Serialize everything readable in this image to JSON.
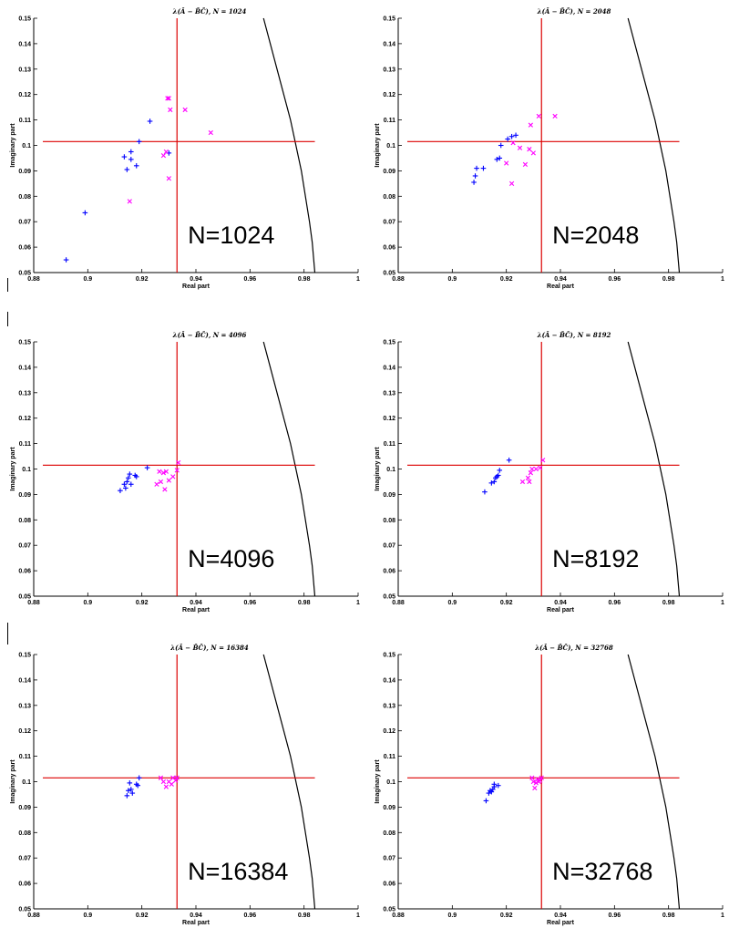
{
  "chart_data": [
    {
      "type": "scatter",
      "title": "λ(Â − B̂Ĉ), N = 1024",
      "xlabel": "Real part",
      "ylabel": "Imaginary part",
      "xlim": [
        0.88,
        1.0
      ],
      "ylim": [
        0.05,
        0.15
      ],
      "xticks": [
        "0.88",
        "0.9",
        "0.92",
        "0.94",
        "0.96",
        "0.98",
        "1"
      ],
      "yticks": [
        "0.05",
        "0.06",
        "0.07",
        "0.08",
        "0.09",
        "0.1",
        "0.11",
        "0.12",
        "0.13",
        "0.14",
        "0.15"
      ],
      "annotation": "N=1024",
      "crosshair": {
        "x": 0.933,
        "y": 0.1015
      },
      "series": [
        {
          "marker": "plus",
          "color": "#0000ff",
          "points": [
            [
              0.892,
              0.055
            ],
            [
              0.899,
              0.0735
            ],
            [
              0.9135,
              0.0955
            ],
            [
              0.9145,
              0.0905
            ],
            [
              0.916,
              0.0945
            ],
            [
              0.916,
              0.0975
            ],
            [
              0.918,
              0.092
            ],
            [
              0.919,
              0.1015
            ],
            [
              0.923,
              0.1095
            ],
            [
              0.93,
              0.097
            ]
          ]
        },
        {
          "marker": "x",
          "color": "#ff00ff",
          "points": [
            [
              0.9155,
              0.078
            ],
            [
              0.928,
              0.096
            ],
            [
              0.929,
              0.0975
            ],
            [
              0.9295,
              0.1185
            ],
            [
              0.93,
              0.1185
            ],
            [
              0.9305,
              0.114
            ],
            [
              0.93,
              0.087
            ],
            [
              0.936,
              0.114
            ],
            [
              0.9455,
              0.105
            ]
          ]
        }
      ],
      "boundary_curve": [
        [
          0.965,
          0.15
        ],
        [
          0.97,
          0.13
        ],
        [
          0.975,
          0.11
        ],
        [
          0.979,
          0.09
        ],
        [
          0.982,
          0.07
        ],
        [
          0.983,
          0.062
        ],
        [
          0.984,
          0.05
        ]
      ]
    },
    {
      "type": "scatter",
      "title": "λ(Â − B̂Ĉ), N = 2048",
      "xlabel": "Real part",
      "ylabel": "Imaginary part",
      "xlim": [
        0.88,
        1.0
      ],
      "ylim": [
        0.05,
        0.15
      ],
      "xticks": [
        "0.88",
        "0.9",
        "0.92",
        "0.94",
        "0.96",
        "0.98",
        "1"
      ],
      "yticks": [
        "0.05",
        "0.06",
        "0.07",
        "0.08",
        "0.09",
        "0.1",
        "0.11",
        "0.12",
        "0.13",
        "0.14",
        "0.15"
      ],
      "annotation": "N=2048",
      "crosshair": {
        "x": 0.933,
        "y": 0.1015
      },
      "series": [
        {
          "marker": "plus",
          "color": "#0000ff",
          "points": [
            [
              0.908,
              0.0855
            ],
            [
              0.9085,
              0.088
            ],
            [
              0.909,
              0.091
            ],
            [
              0.9115,
              0.091
            ],
            [
              0.9165,
              0.0945
            ],
            [
              0.9175,
              0.095
            ],
            [
              0.918,
              0.1
            ],
            [
              0.9205,
              0.1025
            ],
            [
              0.922,
              0.1035
            ],
            [
              0.9235,
              0.104
            ]
          ]
        },
        {
          "marker": "x",
          "color": "#ff00ff",
          "points": [
            [
              0.92,
              0.093
            ],
            [
              0.922,
              0.085
            ],
            [
              0.9225,
              0.101
            ],
            [
              0.925,
              0.099
            ],
            [
              0.927,
              0.0925
            ],
            [
              0.9285,
              0.0985
            ],
            [
              0.93,
              0.097
            ],
            [
              0.929,
              0.108
            ],
            [
              0.932,
              0.1115
            ],
            [
              0.938,
              0.1115
            ]
          ]
        }
      ],
      "boundary_curve": [
        [
          0.965,
          0.15
        ],
        [
          0.97,
          0.13
        ],
        [
          0.975,
          0.11
        ],
        [
          0.979,
          0.09
        ],
        [
          0.982,
          0.07
        ],
        [
          0.983,
          0.062
        ],
        [
          0.984,
          0.05
        ]
      ]
    },
    {
      "type": "scatter",
      "title": "λ(Â − B̂Ĉ), N = 4096",
      "xlabel": "Real part",
      "ylabel": "Imaginary part",
      "xlim": [
        0.88,
        1.0
      ],
      "ylim": [
        0.05,
        0.15
      ],
      "xticks": [
        "0.88",
        "0.9",
        "0.92",
        "0.94",
        "0.96",
        "0.98",
        "1"
      ],
      "yticks": [
        "0.05",
        "0.06",
        "0.07",
        "0.08",
        "0.09",
        "0.1",
        "0.11",
        "0.12",
        "0.13",
        "0.14",
        "0.15"
      ],
      "annotation": "N=4096",
      "crosshair": {
        "x": 0.933,
        "y": 0.1015
      },
      "series": [
        {
          "marker": "plus",
          "color": "#0000ff",
          "points": [
            [
              0.912,
              0.0915
            ],
            [
              0.9135,
              0.094
            ],
            [
              0.914,
              0.0925
            ],
            [
              0.9145,
              0.095
            ],
            [
              0.915,
              0.0965
            ],
            [
              0.9155,
              0.098
            ],
            [
              0.916,
              0.094
            ],
            [
              0.9175,
              0.0975
            ],
            [
              0.918,
              0.097
            ],
            [
              0.922,
              0.1005
            ]
          ]
        },
        {
          "marker": "x",
          "color": "#ff00ff",
          "points": [
            [
              0.9255,
              0.094
            ],
            [
              0.9265,
              0.099
            ],
            [
              0.927,
              0.095
            ],
            [
              0.928,
              0.0985
            ],
            [
              0.9285,
              0.092
            ],
            [
              0.929,
              0.099
            ],
            [
              0.93,
              0.0955
            ],
            [
              0.9315,
              0.097
            ],
            [
              0.933,
              0.0995
            ],
            [
              0.9335,
              0.1025
            ]
          ]
        }
      ],
      "boundary_curve": [
        [
          0.965,
          0.15
        ],
        [
          0.97,
          0.13
        ],
        [
          0.975,
          0.11
        ],
        [
          0.979,
          0.09
        ],
        [
          0.982,
          0.07
        ],
        [
          0.983,
          0.062
        ],
        [
          0.984,
          0.05
        ]
      ]
    },
    {
      "type": "scatter",
      "title": "λ(Â − B̂Ĉ), N = 8192",
      "xlabel": "Real part",
      "ylabel": "Imaginary part",
      "xlim": [
        0.88,
        1.0
      ],
      "ylim": [
        0.05,
        0.15
      ],
      "xticks": [
        "0.88",
        "0.9",
        "0.92",
        "0.94",
        "0.96",
        "0.98",
        "1"
      ],
      "yticks": [
        "0.05",
        "0.06",
        "0.07",
        "0.08",
        "0.09",
        "0.1",
        "0.11",
        "0.12",
        "0.13",
        "0.14",
        "0.15"
      ],
      "annotation": "N=8192",
      "crosshair": {
        "x": 0.933,
        "y": 0.1015
      },
      "series": [
        {
          "marker": "plus",
          "color": "#0000ff",
          "points": [
            [
              0.912,
              0.091
            ],
            [
              0.9145,
              0.0945
            ],
            [
              0.9155,
              0.095
            ],
            [
              0.916,
              0.0965
            ],
            [
              0.9165,
              0.097
            ],
            [
              0.917,
              0.0975
            ],
            [
              0.9175,
              0.0995
            ],
            [
              0.921,
              0.1035
            ]
          ]
        },
        {
          "marker": "x",
          "color": "#ff00ff",
          "points": [
            [
              0.926,
              0.095
            ],
            [
              0.928,
              0.0965
            ],
            [
              0.9285,
              0.095
            ],
            [
              0.929,
              0.0985
            ],
            [
              0.9295,
              0.1
            ],
            [
              0.931,
              0.1
            ],
            [
              0.9325,
              0.1005
            ],
            [
              0.9335,
              0.1035
            ]
          ]
        }
      ],
      "boundary_curve": [
        [
          0.965,
          0.15
        ],
        [
          0.97,
          0.13
        ],
        [
          0.975,
          0.11
        ],
        [
          0.979,
          0.09
        ],
        [
          0.982,
          0.07
        ],
        [
          0.983,
          0.062
        ],
        [
          0.984,
          0.05
        ]
      ]
    },
    {
      "type": "scatter",
      "title": "λ(Â − B̂Ĉ), N = 16384",
      "xlabel": "Real part",
      "ylabel": "Imaginary part",
      "xlim": [
        0.88,
        1.0
      ],
      "ylim": [
        0.05,
        0.15
      ],
      "xticks": [
        "0.88",
        "0.9",
        "0.92",
        "0.94",
        "0.96",
        "0.98",
        "1"
      ],
      "yticks": [
        "0.05",
        "0.06",
        "0.07",
        "0.08",
        "0.09",
        "0.1",
        "0.11",
        "0.12",
        "0.13",
        "0.14",
        "0.15"
      ],
      "annotation": "N=16384",
      "crosshair": {
        "x": 0.933,
        "y": 0.1015
      },
      "series": [
        {
          "marker": "plus",
          "color": "#0000ff",
          "points": [
            [
              0.9145,
              0.0945
            ],
            [
              0.915,
              0.0965
            ],
            [
              0.9155,
              0.0995
            ],
            [
              0.916,
              0.097
            ],
            [
              0.9165,
              0.0955
            ],
            [
              0.918,
              0.099
            ],
            [
              0.9185,
              0.0985
            ],
            [
              0.919,
              0.1015
            ]
          ]
        },
        {
          "marker": "x",
          "color": "#ff00ff",
          "points": [
            [
              0.927,
              0.1015
            ],
            [
              0.928,
              0.1
            ],
            [
              0.929,
              0.098
            ],
            [
              0.93,
              0.1
            ],
            [
              0.931,
              0.099
            ],
            [
              0.9315,
              0.1015
            ],
            [
              0.9325,
              0.1005
            ],
            [
              0.933,
              0.1015
            ]
          ]
        }
      ],
      "boundary_curve": [
        [
          0.965,
          0.15
        ],
        [
          0.97,
          0.13
        ],
        [
          0.975,
          0.11
        ],
        [
          0.979,
          0.09
        ],
        [
          0.982,
          0.07
        ],
        [
          0.983,
          0.062
        ],
        [
          0.984,
          0.05
        ]
      ]
    },
    {
      "type": "scatter",
      "title": "λ(Â − B̂Ĉ), N = 32768",
      "xlabel": "Real part",
      "ylabel": "Imaginary part",
      "xlim": [
        0.88,
        1.0
      ],
      "ylim": [
        0.05,
        0.15
      ],
      "xticks": [
        "0.88",
        "0.9",
        "0.92",
        "0.94",
        "0.96",
        "0.98",
        "1"
      ],
      "yticks": [
        "0.05",
        "0.06",
        "0.07",
        "0.08",
        "0.09",
        "0.1",
        "0.11",
        "0.12",
        "0.13",
        "0.14",
        "0.15"
      ],
      "annotation": "N=32768",
      "crosshair": {
        "x": 0.933,
        "y": 0.1015
      },
      "series": [
        {
          "marker": "plus",
          "color": "#0000ff",
          "points": [
            [
              0.9125,
              0.0925
            ],
            [
              0.9135,
              0.0955
            ],
            [
              0.914,
              0.0965
            ],
            [
              0.9145,
              0.096
            ],
            [
              0.915,
              0.097
            ],
            [
              0.9155,
              0.098
            ],
            [
              0.9155,
              0.099
            ],
            [
              0.917,
              0.0985
            ]
          ]
        },
        {
          "marker": "x",
          "color": "#ff00ff",
          "points": [
            [
              0.9295,
              0.1015
            ],
            [
              0.93,
              0.1
            ],
            [
              0.9305,
              0.0975
            ],
            [
              0.931,
              0.0995
            ],
            [
              0.9315,
              0.101
            ],
            [
              0.932,
              0.1
            ],
            [
              0.9325,
              0.1005
            ],
            [
              0.933,
              0.1015
            ]
          ]
        }
      ],
      "boundary_curve": [
        [
          0.965,
          0.15
        ],
        [
          0.97,
          0.13
        ],
        [
          0.975,
          0.11
        ],
        [
          0.979,
          0.09
        ],
        [
          0.982,
          0.07
        ],
        [
          0.983,
          0.062
        ],
        [
          0.984,
          0.05
        ]
      ]
    }
  ]
}
